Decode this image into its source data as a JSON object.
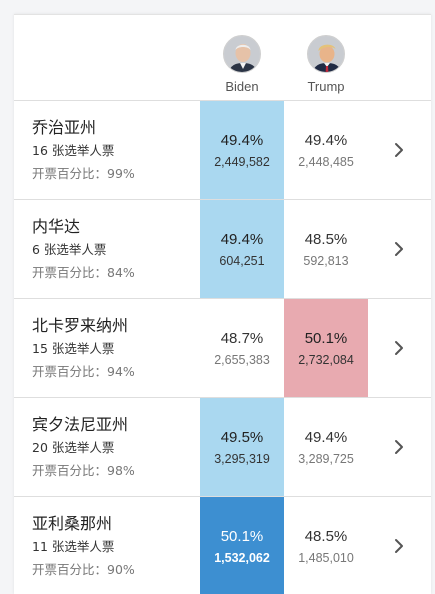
{
  "candidates": [
    {
      "name": "Biden",
      "icon": "biden-avatar-icon"
    },
    {
      "name": "Trump",
      "icon": "trump-avatar-icon"
    }
  ],
  "colors": {
    "lean_blue": "#aad8f0",
    "strong_blue": "#3d8fd1",
    "lean_red": "#e8aab0"
  },
  "states": [
    {
      "name": "乔治亚州",
      "electors": "16 张选举人票",
      "reported": "开票百分比：99%",
      "biden": {
        "pct": "49.4%",
        "votes": "2,449,582"
      },
      "trump": {
        "pct": "49.4%",
        "votes": "2,448,485"
      }
    },
    {
      "name": "内华达",
      "electors": "6 张选举人票",
      "reported": "开票百分比：84%",
      "biden": {
        "pct": "49.4%",
        "votes": "604,251"
      },
      "trump": {
        "pct": "48.5%",
        "votes": "592,813"
      }
    },
    {
      "name": "北卡罗来纳州",
      "electors": "15 张选举人票",
      "reported": "开票百分比：94%",
      "biden": {
        "pct": "48.7%",
        "votes": "2,655,383"
      },
      "trump": {
        "pct": "50.1%",
        "votes": "2,732,084"
      }
    },
    {
      "name": "宾夕法尼亚州",
      "electors": "20 张选举人票",
      "reported": "开票百分比：98%",
      "biden": {
        "pct": "49.5%",
        "votes": "3,295,319"
      },
      "trump": {
        "pct": "49.4%",
        "votes": "3,289,725"
      }
    },
    {
      "name": "亚利桑那州",
      "electors": "11 张选举人票",
      "reported": "开票百分比：90%",
      "biden": {
        "pct": "50.1%",
        "votes": "1,532,062"
      },
      "trump": {
        "pct": "48.5%",
        "votes": "1,485,010"
      }
    }
  ]
}
